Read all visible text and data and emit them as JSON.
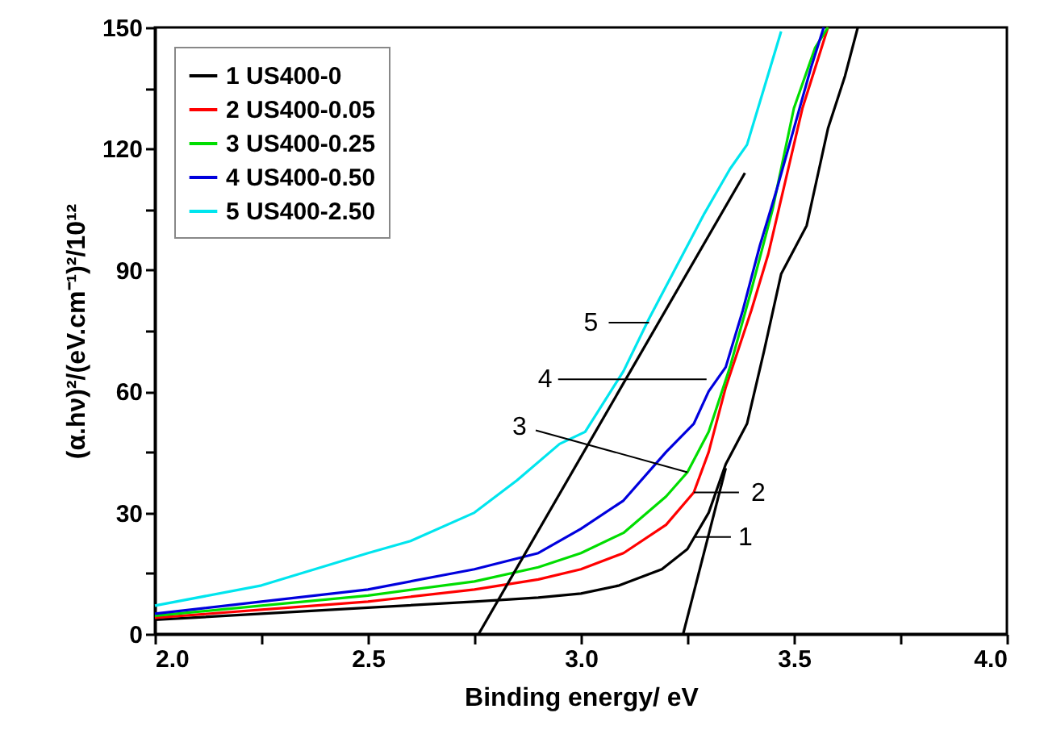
{
  "chart_data": {
    "type": "line",
    "xlabel": "Binding energy/ eV",
    "ylabel": "(α.hν)²/(eV.cm⁻¹)²/10¹²",
    "x": [
      2.0,
      2.25,
      2.5,
      2.75,
      2.9,
      3.0,
      3.09,
      3.19,
      3.25,
      3.3,
      3.34,
      3.39,
      3.43,
      3.47,
      3.53,
      3.58,
      3.62,
      3.65
    ],
    "series": [
      {
        "name": "1 US400-0",
        "color": "#000000",
        "values": [
          3.5,
          5,
          6.5,
          8,
          9,
          10,
          12,
          16,
          21,
          30,
          42,
          52,
          70,
          89,
          101,
          125,
          138,
          150
        ]
      },
      {
        "name": "2 US400-0.05",
        "color": "#ff0000",
        "x": [
          2.0,
          2.25,
          2.5,
          2.75,
          2.9,
          3.0,
          3.1,
          3.2,
          3.265,
          3.3,
          3.34,
          3.4,
          3.44,
          3.48,
          3.52,
          3.58
        ],
        "values": [
          4,
          6,
          8,
          11,
          13.5,
          16,
          20,
          27,
          35,
          45,
          61,
          80,
          94,
          112,
          130,
          150
        ]
      },
      {
        "name": "3 US400-0.25",
        "color": "#00dd00",
        "x": [
          2.0,
          2.25,
          2.5,
          2.75,
          2.9,
          3.0,
          3.1,
          3.2,
          3.25,
          3.3,
          3.35,
          3.4,
          3.45,
          3.5,
          3.55,
          3.58
        ],
        "values": [
          4.5,
          7,
          9.5,
          13,
          16.5,
          20,
          25,
          34,
          40,
          50,
          66,
          85,
          105,
          130,
          145,
          150
        ]
      },
      {
        "name": "4 US400-0.50",
        "color": "#0000dd",
        "x": [
          2.0,
          2.25,
          2.5,
          2.75,
          2.9,
          3.0,
          3.1,
          3.2,
          3.265,
          3.3,
          3.34,
          3.38,
          3.42,
          3.46,
          3.5,
          3.54,
          3.57
        ],
        "values": [
          5,
          8,
          11,
          16,
          20,
          26,
          33,
          45,
          52,
          60,
          66,
          80,
          96,
          110,
          125,
          140,
          150
        ]
      },
      {
        "name": "5 US400-2.50",
        "color": "#00e5ee",
        "x": [
          2.0,
          2.25,
          2.5,
          2.6,
          2.75,
          2.85,
          2.95,
          3.01,
          3.1,
          3.16,
          3.22,
          3.29,
          3.35,
          3.39,
          3.43,
          3.47
        ],
        "values": [
          7,
          12,
          20,
          23,
          30,
          38,
          47,
          50,
          65,
          78,
          90,
          104,
          115,
          121,
          135,
          149
        ]
      },
      {
        "type": "line",
        "color": "#000000",
        "x": [
          2.76,
          3.385
        ],
        "values": [
          0,
          114
        ]
      },
      {
        "type": "line",
        "color": "#000000",
        "x": [
          3.24,
          3.34
        ],
        "values": [
          0,
          41
        ]
      }
    ],
    "xlim": [
      2.0,
      4.0
    ],
    "xticks": [
      {
        "value": 2.0,
        "label": "2.0"
      },
      {
        "value": 2.25,
        "label": null
      },
      {
        "value": 2.5,
        "label": "2.5"
      },
      {
        "value": 2.75,
        "label": null
      },
      {
        "value": 3.0,
        "label": "3.0"
      },
      {
        "value": 3.25,
        "label": null
      },
      {
        "value": 3.5,
        "label": "3.5"
      },
      {
        "value": 3.75,
        "label": null
      },
      {
        "value": 4.0,
        "label": "4.0"
      }
    ],
    "ylim": [
      0,
      150
    ],
    "yticks": [
      0,
      {
        "value": 15,
        "label": null
      },
      30,
      {
        "value": 45,
        "label": null
      },
      60,
      {
        "value": 75,
        "label": null
      },
      90,
      {
        "value": 105,
        "label": null
      },
      120,
      {
        "value": 135,
        "label": null
      },
      150
    ],
    "annotations": [
      {
        "text": "1",
        "x": 3.265,
        "y": 24
      },
      {
        "text": "2",
        "x": 3.265,
        "y": 35
      },
      {
        "text": "3",
        "x": 3.25,
        "y": 40
      },
      {
        "text": "4",
        "x": 3.295,
        "y": 63
      },
      {
        "text": "5",
        "x": 3.16,
        "y": 77
      }
    ],
    "legend": "top left",
    "grid": false
  }
}
